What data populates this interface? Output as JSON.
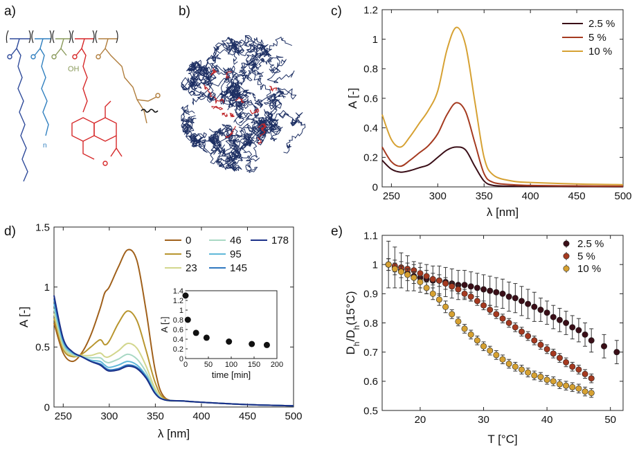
{
  "panel_labels": [
    "a)",
    "b)",
    "c)",
    "d)",
    "e)"
  ],
  "panel_a": {
    "description_labels": [
      "OH",
      "n"
    ],
    "colors": {
      "blue": "#2e4a9a",
      "lightblue": "#2f7fbf",
      "olive": "#8a9a5b",
      "red": "#d62728",
      "brown": "#b07d3c"
    }
  },
  "panel_b": {
    "colors": {
      "chain": "#1d2f63",
      "highlight": "#c0282b"
    }
  },
  "chart_data": [
    {
      "id": "c",
      "type": "line",
      "xlabel": "λ [nm]",
      "ylabel": "A [-]",
      "xlim": [
        240,
        500
      ],
      "ylim": [
        0,
        1.2
      ],
      "xticks": [
        250,
        300,
        350,
        400,
        450,
        500
      ],
      "yticks": [
        0,
        0.2,
        0.4,
        0.6,
        0.8,
        1,
        1.2
      ],
      "legend_position": "top-right",
      "x": [
        240,
        250,
        260,
        270,
        280,
        290,
        300,
        310,
        320,
        330,
        340,
        350,
        360,
        380,
        400,
        450,
        500
      ],
      "series": [
        {
          "name": "2.5 %",
          "color": "#3a0e17",
          "values": [
            0.18,
            0.12,
            0.1,
            0.11,
            0.13,
            0.15,
            0.2,
            0.25,
            0.27,
            0.25,
            0.14,
            0.04,
            0.01,
            0.005,
            0.003,
            0.002,
            0.001
          ]
        },
        {
          "name": "5 %",
          "color": "#a53a20",
          "values": [
            0.27,
            0.17,
            0.14,
            0.18,
            0.23,
            0.28,
            0.36,
            0.49,
            0.57,
            0.51,
            0.3,
            0.09,
            0.03,
            0.015,
            0.01,
            0.007,
            0.005
          ]
        },
        {
          "name": "10 %",
          "color": "#d6a132",
          "values": [
            0.49,
            0.32,
            0.27,
            0.34,
            0.43,
            0.52,
            0.65,
            0.93,
            1.08,
            0.96,
            0.58,
            0.2,
            0.08,
            0.04,
            0.03,
            0.02,
            0.015
          ]
        }
      ]
    },
    {
      "id": "d",
      "type": "line",
      "xlabel": "λ [nm]",
      "ylabel": "A [-]",
      "xlim": [
        240,
        500
      ],
      "ylim": [
        0,
        1.5
      ],
      "xticks": [
        250,
        300,
        350,
        400,
        450,
        500
      ],
      "yticks": [
        0,
        0.5,
        1,
        1.5
      ],
      "legend_position": "top-right",
      "x": [
        240,
        250,
        260,
        270,
        280,
        290,
        295,
        300,
        310,
        320,
        330,
        340,
        350,
        360,
        380,
        400,
        450,
        500
      ],
      "series": [
        {
          "name": "0",
          "color": "#a0601a",
          "values": [
            0.7,
            0.45,
            0.38,
            0.45,
            0.6,
            0.82,
            0.95,
            1.0,
            1.17,
            1.31,
            1.22,
            0.8,
            0.3,
            0.08,
            0.05,
            0.04,
            0.02,
            0.01
          ]
        },
        {
          "name": "5",
          "color": "#b8952e",
          "values": [
            0.74,
            0.48,
            0.42,
            0.44,
            0.5,
            0.56,
            0.52,
            0.55,
            0.7,
            0.8,
            0.72,
            0.47,
            0.2,
            0.07,
            0.05,
            0.04,
            0.02,
            0.01
          ]
        },
        {
          "name": "23",
          "color": "#d2d68c",
          "values": [
            0.78,
            0.5,
            0.43,
            0.43,
            0.43,
            0.45,
            0.42,
            0.42,
            0.47,
            0.53,
            0.49,
            0.34,
            0.15,
            0.06,
            0.05,
            0.04,
            0.02,
            0.01
          ]
        },
        {
          "name": "46",
          "color": "#a8d8c4",
          "values": [
            0.82,
            0.52,
            0.44,
            0.42,
            0.41,
            0.41,
            0.38,
            0.37,
            0.4,
            0.44,
            0.4,
            0.29,
            0.13,
            0.06,
            0.05,
            0.04,
            0.02,
            0.01
          ]
        },
        {
          "name": "95",
          "color": "#5fb8d8",
          "values": [
            0.86,
            0.54,
            0.45,
            0.42,
            0.39,
            0.38,
            0.35,
            0.33,
            0.35,
            0.38,
            0.35,
            0.26,
            0.12,
            0.06,
            0.05,
            0.04,
            0.02,
            0.01
          ]
        },
        {
          "name": "145",
          "color": "#2f78bf",
          "values": [
            0.9,
            0.56,
            0.46,
            0.42,
            0.38,
            0.36,
            0.33,
            0.31,
            0.32,
            0.35,
            0.33,
            0.25,
            0.11,
            0.06,
            0.05,
            0.04,
            0.02,
            0.01
          ]
        },
        {
          "name": "178",
          "color": "#1a2f88",
          "values": [
            0.93,
            0.57,
            0.46,
            0.42,
            0.38,
            0.35,
            0.32,
            0.3,
            0.31,
            0.34,
            0.32,
            0.24,
            0.11,
            0.06,
            0.05,
            0.04,
            0.02,
            0.01
          ]
        }
      ],
      "inset": {
        "type": "scatter",
        "xlabel": "time [min]",
        "ylabel": "A [-]",
        "xlim": [
          0,
          200
        ],
        "ylim": [
          0,
          1.4
        ],
        "xticks": [
          0,
          50,
          100,
          150,
          200
        ],
        "yticks": [
          0,
          0.2,
          0.4,
          0.6,
          0.8,
          1,
          1.2,
          1.4
        ],
        "x": [
          0,
          5,
          23,
          46,
          95,
          145,
          178
        ],
        "y": [
          1.3,
          0.8,
          0.53,
          0.43,
          0.35,
          0.3,
          0.28
        ]
      }
    },
    {
      "id": "e",
      "type": "scatter",
      "xlabel": "T [°C]",
      "ylabel": "D_h/D_h(15°C)",
      "ylabel_parts": {
        "d1": "D",
        "s1": "h",
        "slash": "/D",
        "s2": "h",
        "tail": "(15°C)"
      },
      "xlim": [
        14,
        52
      ],
      "ylim": [
        0.5,
        1.1
      ],
      "xticks": [
        20,
        30,
        40,
        50
      ],
      "yticks": [
        0.5,
        0.6,
        0.7,
        0.8,
        0.9,
        1,
        1.1
      ],
      "legend_position": "top-right",
      "series": [
        {
          "name": "2.5 %",
          "color": "#3a0e17",
          "x": [
            15,
            16,
            17,
            18,
            19,
            20,
            21,
            22,
            23,
            24,
            25,
            26,
            27,
            28,
            29,
            30,
            31,
            32,
            33,
            34,
            35,
            36,
            37,
            38,
            39,
            40,
            41,
            42,
            43,
            44,
            45,
            46,
            47,
            49,
            51
          ],
          "y": [
            1.0,
            0.99,
            0.98,
            0.97,
            0.96,
            0.955,
            0.95,
            0.945,
            0.945,
            0.94,
            0.935,
            0.93,
            0.93,
            0.925,
            0.92,
            0.915,
            0.91,
            0.905,
            0.9,
            0.89,
            0.885,
            0.875,
            0.865,
            0.855,
            0.845,
            0.835,
            0.82,
            0.81,
            0.8,
            0.785,
            0.775,
            0.76,
            0.74,
            0.72,
            0.7
          ],
          "err": [
            0.08,
            0.07,
            0.06,
            0.06,
            0.05,
            0.05,
            0.05,
            0.05,
            0.05,
            0.05,
            0.05,
            0.05,
            0.05,
            0.05,
            0.05,
            0.05,
            0.05,
            0.05,
            0.05,
            0.05,
            0.05,
            0.05,
            0.05,
            0.05,
            0.04,
            0.04,
            0.04,
            0.04,
            0.04,
            0.04,
            0.04,
            0.04,
            0.04,
            0.04,
            0.04
          ]
        },
        {
          "name": "5 %",
          "color": "#a53a20",
          "x": [
            15,
            16,
            17,
            18,
            19,
            20,
            21,
            22,
            23,
            24,
            25,
            26,
            27,
            28,
            29,
            30,
            31,
            32,
            33,
            34,
            35,
            36,
            37,
            38,
            39,
            40,
            41,
            42,
            43,
            44,
            45,
            46,
            47
          ],
          "y": [
            1.0,
            0.995,
            0.99,
            0.985,
            0.98,
            0.97,
            0.96,
            0.95,
            0.945,
            0.935,
            0.925,
            0.915,
            0.9,
            0.89,
            0.875,
            0.86,
            0.845,
            0.83,
            0.815,
            0.8,
            0.785,
            0.77,
            0.755,
            0.74,
            0.725,
            0.71,
            0.695,
            0.68,
            0.665,
            0.65,
            0.64,
            0.625,
            0.61
          ],
          "err": [
            0.02,
            0.02,
            0.02,
            0.02,
            0.02,
            0.02,
            0.02,
            0.02,
            0.02,
            0.02,
            0.015,
            0.015,
            0.015,
            0.015,
            0.015,
            0.015,
            0.015,
            0.015,
            0.015,
            0.015,
            0.015,
            0.015,
            0.015,
            0.015,
            0.015,
            0.015,
            0.015,
            0.015,
            0.015,
            0.015,
            0.015,
            0.015,
            0.015
          ]
        },
        {
          "name": "10 %",
          "color": "#d6a132",
          "x": [
            15,
            16,
            17,
            18,
            19,
            20,
            21,
            22,
            23,
            24,
            25,
            26,
            27,
            28,
            29,
            30,
            31,
            32,
            33,
            34,
            35,
            36,
            37,
            38,
            39,
            40,
            41,
            42,
            43,
            44,
            45,
            46,
            47
          ],
          "y": [
            1.0,
            0.985,
            0.975,
            0.965,
            0.955,
            0.94,
            0.92,
            0.9,
            0.88,
            0.855,
            0.83,
            0.805,
            0.78,
            0.76,
            0.74,
            0.72,
            0.705,
            0.69,
            0.675,
            0.66,
            0.65,
            0.64,
            0.63,
            0.62,
            0.615,
            0.605,
            0.6,
            0.59,
            0.585,
            0.58,
            0.575,
            0.565,
            0.56
          ],
          "err": [
            0.02,
            0.02,
            0.02,
            0.02,
            0.02,
            0.02,
            0.02,
            0.02,
            0.02,
            0.02,
            0.015,
            0.015,
            0.015,
            0.015,
            0.015,
            0.015,
            0.015,
            0.015,
            0.015,
            0.015,
            0.015,
            0.015,
            0.015,
            0.015,
            0.015,
            0.015,
            0.015,
            0.015,
            0.015,
            0.015,
            0.015,
            0.015,
            0.015
          ]
        }
      ]
    }
  ]
}
